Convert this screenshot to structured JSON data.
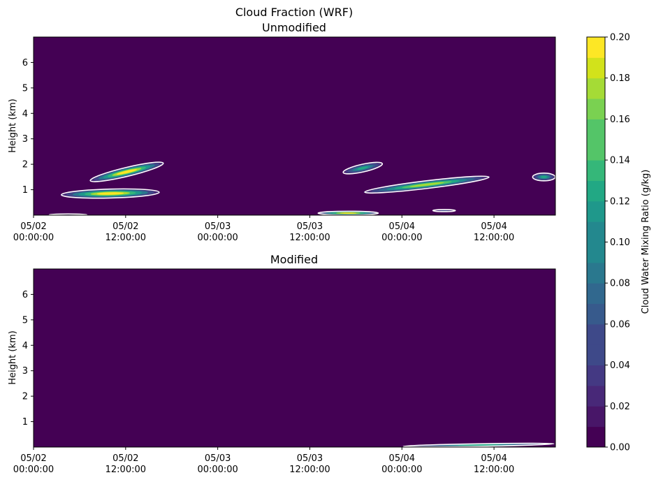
{
  "figure": {
    "title": "Cloud Fraction (WRF)"
  },
  "colors": {
    "background": "#440154",
    "contour_line": "#ffffff"
  },
  "chart_data": [
    {
      "type": "heatmap",
      "subtitle": "Unmodified",
      "ylabel": "Height (km)",
      "xlabel": "",
      "x_ticks": [
        {
          "hours": 0,
          "label": [
            "05/02",
            "00:00:00"
          ]
        },
        {
          "hours": 12,
          "label": [
            "05/02",
            "12:00:00"
          ]
        },
        {
          "hours": 24,
          "label": [
            "05/03",
            "00:00:00"
          ]
        },
        {
          "hours": 36,
          "label": [
            "05/03",
            "12:00:00"
          ]
        },
        {
          "hours": 48,
          "label": [
            "05/04",
            "00:00:00"
          ]
        },
        {
          "hours": 60,
          "label": [
            "05/04",
            "12:00:00"
          ]
        }
      ],
      "xlim_hours": [
        0,
        68
      ],
      "ylim": [
        0,
        7
      ],
      "y_ticks": [
        1,
        2,
        3,
        4,
        5,
        6
      ],
      "cloud_features": [
        {
          "t_start": 3.5,
          "t_end": 16.5,
          "h_center": 0.85,
          "thickness": 0.35,
          "tilt": 0.1,
          "peak": 0.2
        },
        {
          "t_start": 7.3,
          "t_end": 17.0,
          "h_center": 1.7,
          "thickness": 0.35,
          "tilt": 0.7,
          "peak": 0.2
        },
        {
          "t_start": 40.3,
          "t_end": 45.5,
          "h_center": 1.85,
          "thickness": 0.3,
          "tilt": 0.35,
          "peak": 0.12
        },
        {
          "t_start": 43.0,
          "t_end": 59.5,
          "h_center": 1.2,
          "thickness": 0.3,
          "tilt": 0.6,
          "peak": 0.18
        },
        {
          "t_start": 65.0,
          "t_end": 68.0,
          "h_center": 1.5,
          "thickness": 0.3,
          "tilt": 0.0,
          "peak": 0.12
        },
        {
          "t_start": 37.0,
          "t_end": 45.0,
          "h_center": 0.08,
          "thickness": 0.15,
          "tilt": 0.0,
          "peak": 0.2
        },
        {
          "t_start": 52.0,
          "t_end": 55.0,
          "h_center": 0.18,
          "thickness": 0.08,
          "tilt": 0.0,
          "peak": 0.05
        },
        {
          "t_start": 2.0,
          "t_end": 7.0,
          "h_center": 0.02,
          "thickness": 0.05,
          "tilt": 0.0,
          "peak": 0.02
        }
      ]
    },
    {
      "type": "heatmap",
      "subtitle": "Modified",
      "ylabel": "Height (km)",
      "xlabel": "",
      "x_ticks": [
        {
          "hours": 0,
          "label": [
            "05/02",
            "00:00:00"
          ]
        },
        {
          "hours": 12,
          "label": [
            "05/02",
            "12:00:00"
          ]
        },
        {
          "hours": 24,
          "label": [
            "05/03",
            "00:00:00"
          ]
        },
        {
          "hours": 36,
          "label": [
            "05/03",
            "12:00:00"
          ]
        },
        {
          "hours": 48,
          "label": [
            "05/04",
            "00:00:00"
          ]
        },
        {
          "hours": 60,
          "label": [
            "05/04",
            "12:00:00"
          ]
        }
      ],
      "xlim_hours": [
        0,
        68
      ],
      "ylim": [
        0,
        7
      ],
      "y_ticks": [
        1,
        2,
        3,
        4,
        5,
        6
      ],
      "cloud_features": [
        {
          "t_start": 48.0,
          "t_end": 68.0,
          "h_center": 0.08,
          "thickness": 0.1,
          "tilt": 0.1,
          "peak": 0.12
        }
      ]
    }
  ],
  "colorbar": {
    "label": "Cloud Water Mixing Ratio (g/kg)",
    "min": 0.0,
    "max": 0.2,
    "levels": 20,
    "ticks": [
      "0.00",
      "0.02",
      "0.04",
      "0.06",
      "0.08",
      "0.10",
      "0.12",
      "0.14",
      "0.16",
      "0.18",
      "0.20"
    ],
    "colormap": "viridis"
  }
}
